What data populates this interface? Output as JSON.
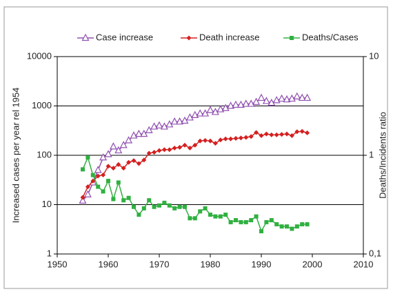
{
  "chart_data": {
    "type": "line",
    "y_label": "Increased cases per year rel 1954",
    "y2_label": "Deaths/Incidents ratio",
    "log_y": true,
    "log_y2": true,
    "grid": true,
    "legend": "top",
    "xlim": [
      1950,
      2010
    ],
    "xticks": [
      1950,
      1960,
      1970,
      1980,
      1990,
      2000,
      2010
    ],
    "ylim": [
      1,
      10000
    ],
    "yticks": [
      1,
      10,
      100,
      1000,
      10000
    ],
    "y2lim": [
      0.1,
      10
    ],
    "y2ticks": [
      {
        "value": 0.1,
        "label": "0,1"
      },
      1,
      10
    ],
    "x": [
      1955,
      1956,
      1957,
      1958,
      1959,
      1960,
      1961,
      1962,
      1963,
      1964,
      1965,
      1966,
      1967,
      1968,
      1969,
      1970,
      1971,
      1972,
      1973,
      1974,
      1975,
      1976,
      1977,
      1978,
      1979,
      1980,
      1981,
      1982,
      1983,
      1984,
      1985,
      1986,
      1987,
      1988,
      1989,
      1990,
      1991,
      1992,
      1993,
      1994,
      1995,
      1996,
      1997,
      1998,
      1999
    ],
    "series": [
      {
        "name": "Case increase",
        "color": "#9050b0",
        "marker": "triangle",
        "values": [
          12,
          16,
          28,
          50,
          90,
          105,
          150,
          125,
          160,
          200,
          250,
          270,
          270,
          320,
          380,
          400,
          380,
          420,
          480,
          480,
          500,
          580,
          650,
          700,
          700,
          820,
          750,
          850,
          900,
          1000,
          1050,
          1050,
          1100,
          1100,
          1200,
          1450,
          1250,
          1150,
          1300,
          1400,
          1350,
          1400,
          1550,
          1450,
          1450
        ]
      },
      {
        "name": "Death increase",
        "color": "#d42020",
        "marker": "diamond",
        "values": [
          14,
          23,
          30,
          38,
          40,
          60,
          55,
          65,
          55,
          72,
          78,
          68,
          80,
          110,
          115,
          125,
          130,
          130,
          140,
          145,
          160,
          140,
          160,
          195,
          200,
          195,
          175,
          205,
          215,
          215,
          220,
          225,
          230,
          240,
          290,
          250,
          270,
          260,
          260,
          265,
          270,
          250,
          300,
          305,
          285
        ]
      },
      {
        "name": "Deaths/Cases",
        "color": "#30b040",
        "marker": "square",
        "axis": "y2",
        "values": [
          0.72,
          0.95,
          0.63,
          0.48,
          0.43,
          0.55,
          0.36,
          0.53,
          0.35,
          0.37,
          0.3,
          0.25,
          0.29,
          0.35,
          0.3,
          0.31,
          0.33,
          0.31,
          0.29,
          0.3,
          0.3,
          0.23,
          0.23,
          0.27,
          0.29,
          0.25,
          0.24,
          0.24,
          0.25,
          0.21,
          0.22,
          0.21,
          0.21,
          0.22,
          0.24,
          0.17,
          0.21,
          0.22,
          0.2,
          0.19,
          0.19,
          0.18,
          0.19,
          0.2,
          0.2
        ]
      }
    ]
  }
}
